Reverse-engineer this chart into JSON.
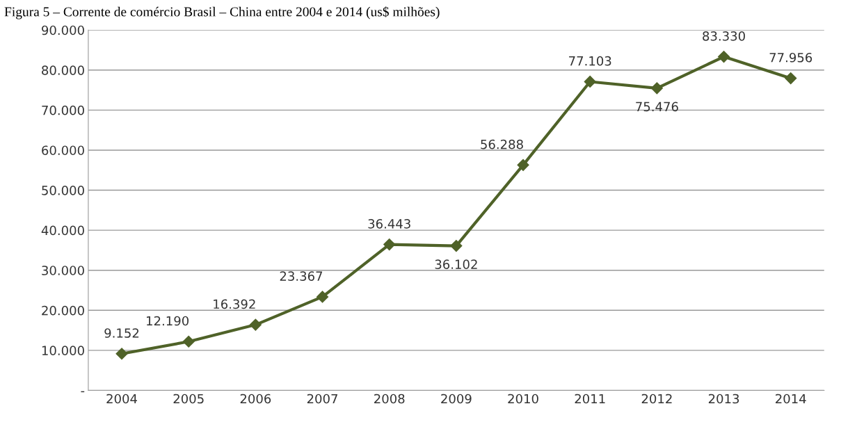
{
  "chart_data": {
    "type": "line",
    "title": "Figura 5 – Corrente de comércio Brasil – China entre 2004 e 2014 (us$ milhões)",
    "categories": [
      "2004",
      "2005",
      "2006",
      "2007",
      "2008",
      "2009",
      "2010",
      "2011",
      "2012",
      "2013",
      "2014"
    ],
    "series": [
      {
        "color": "#4f6228",
        "values": [
          9152,
          12190,
          16392,
          23367,
          36443,
          36102,
          56288,
          77103,
          75476,
          83330,
          77956
        ],
        "value_labels": [
          "9.152",
          "12.190",
          "16.392",
          "23.367",
          "36.443",
          "36.102",
          "56.288",
          "77.103",
          "75.476",
          "83.330",
          "77.956"
        ]
      }
    ],
    "ylim": [
      0,
      90000
    ],
    "yticks": [
      {
        "value": 0,
        "label": "-"
      },
      {
        "value": 10000,
        "label": "10.000"
      },
      {
        "value": 20000,
        "label": "20.000"
      },
      {
        "value": 30000,
        "label": "30.000"
      },
      {
        "value": 40000,
        "label": "40.000"
      },
      {
        "value": 50000,
        "label": "50.000"
      },
      {
        "value": 60000,
        "label": "60.000"
      },
      {
        "value": 70000,
        "label": "70.000"
      },
      {
        "value": 80000,
        "label": "80.000"
      },
      {
        "value": 90000,
        "label": "90.000"
      }
    ],
    "grid": "y",
    "marker": "diamond",
    "line_style": "solid"
  }
}
